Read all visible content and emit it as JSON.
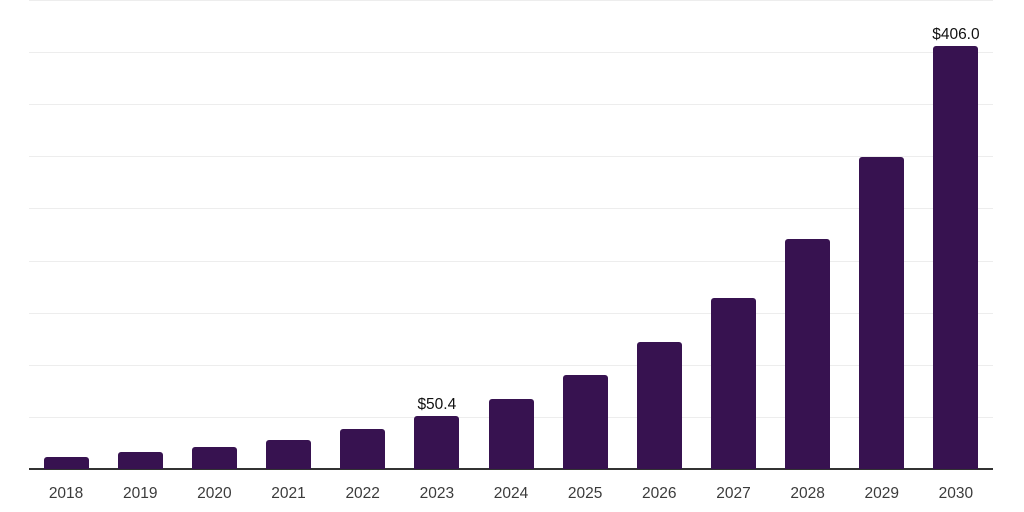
{
  "chart_data": {
    "type": "bar",
    "title": "",
    "xlabel": "",
    "ylabel": "",
    "categories": [
      "2018",
      "2019",
      "2020",
      "2021",
      "2022",
      "2023",
      "2024",
      "2025",
      "2026",
      "2027",
      "2028",
      "2029",
      "2030"
    ],
    "values": [
      12,
      16,
      21,
      28,
      38,
      50.4,
      67,
      90,
      122,
      164,
      221,
      299,
      406
    ],
    "annotations": [
      {
        "index": 5,
        "text": "$50.4"
      },
      {
        "index": 12,
        "text": "$406.0"
      }
    ],
    "ylim": [
      0,
      450
    ],
    "grid_step": 50,
    "grid": true,
    "legend": false,
    "y_tick_labels": false
  },
  "colors": {
    "bar": "#371250",
    "gridline": "#ededed",
    "axis_line": "#333333",
    "tick_label": "#3b3b3b",
    "value_label": "#111111",
    "background": "#ffffff"
  }
}
